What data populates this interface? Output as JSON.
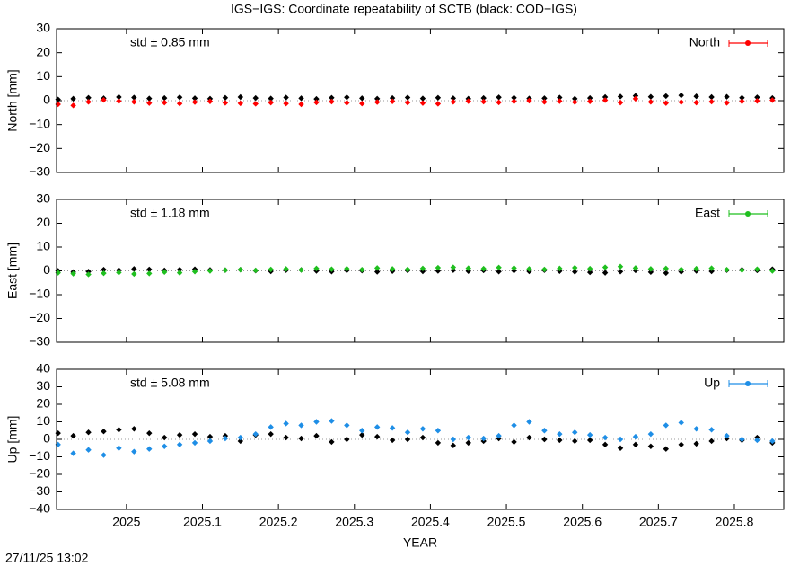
{
  "title": "IGS−IGS: Coordinate repeatability of SCTB (black: COD−IGS)",
  "xlabel": "YEAR",
  "timestamp": "27/11/25 13:02",
  "chart_data": [
    {
      "type": "scatter",
      "ylabel": "North [mm]",
      "annotation": "std ± 0.85 mm",
      "annotation_color": "#ff0000",
      "xlim": [
        2024.908,
        2025.865
      ],
      "ylim": [
        -30,
        30
      ],
      "yticks": [
        {
          "value": -30,
          "label": "−30"
        },
        {
          "value": -20,
          "label": "−20"
        },
        {
          "value": -10,
          "label": "−10"
        },
        0,
        10,
        20,
        30
      ],
      "legend": "top-right",
      "x": [
        2024.91,
        2024.93,
        2024.95,
        2024.97,
        2024.99,
        2025.01,
        2025.03,
        2025.05,
        2025.07,
        2025.09,
        2025.11,
        2025.13,
        2025.15,
        2025.17,
        2025.19,
        2025.21,
        2025.23,
        2025.25,
        2025.27,
        2025.29,
        2025.31,
        2025.33,
        2025.35,
        2025.37,
        2025.39,
        2025.41,
        2025.43,
        2025.45,
        2025.47,
        2025.49,
        2025.51,
        2025.53,
        2025.55,
        2025.57,
        2025.59,
        2025.61,
        2025.63,
        2025.65,
        2025.67,
        2025.69,
        2025.71,
        2025.73,
        2025.75,
        2025.77,
        2025.79,
        2025.81,
        2025.83,
        2025.85
      ],
      "series": [
        {
          "color": "#000000",
          "values": [
            0.5,
            0.8,
            1.2,
            1.0,
            1.5,
            1.3,
            0.9,
            1.1,
            1.4,
            1.0,
            0.8,
            1.2,
            1.5,
            1.1,
            0.9,
            1.3,
            1.0,
            0.7,
            1.2,
            1.4,
            1.0,
            0.8,
            1.1,
            1.3,
            0.9,
            1.2,
            1.0,
            0.8,
            1.1,
            1.4,
            1.2,
            0.9,
            1.0,
            1.3,
            0.8,
            1.1,
            1.5,
            1.7,
            2.0,
            1.6,
            1.9,
            2.2,
            1.8,
            1.5,
            1.6,
            1.2,
            1.4,
            1.1
          ]
        },
        {
          "name": "North",
          "color": "#ff0000",
          "values": [
            -1.5,
            -2.0,
            -0.5,
            0.3,
            -0.2,
            -0.5,
            -1.0,
            -0.8,
            -1.2,
            -0.6,
            -0.3,
            -0.9,
            -1.1,
            -1.3,
            -0.8,
            -1.2,
            -1.5,
            -0.7,
            -0.4,
            -0.9,
            -1.2,
            -0.6,
            -0.3,
            -0.8,
            -1.0,
            -1.3,
            -0.5,
            -0.2,
            -0.4,
            -0.7,
            -0.3,
            0.0,
            -0.5,
            -0.2,
            -0.6,
            -0.3,
            0.2,
            -0.8,
            0.8,
            -0.5,
            -1.0,
            -0.6,
            -0.8,
            -0.4,
            -0.9,
            -0.3,
            -0.1,
            0.2
          ]
        }
      ]
    },
    {
      "type": "scatter",
      "ylabel": "East [mm]",
      "annotation": "std ± 1.18 mm",
      "annotation_color": "#1fbf1f",
      "xlim": [
        2024.908,
        2025.865
      ],
      "ylim": [
        -30,
        30
      ],
      "yticks": [
        {
          "value": -30,
          "label": "−30"
        },
        {
          "value": -20,
          "label": "−20"
        },
        {
          "value": -10,
          "label": "−10"
        },
        0,
        10,
        20,
        30
      ],
      "legend": "top-right",
      "x": [
        2024.91,
        2024.93,
        2024.95,
        2024.97,
        2024.99,
        2025.01,
        2025.03,
        2025.05,
        2025.07,
        2025.09,
        2025.11,
        2025.13,
        2025.15,
        2025.17,
        2025.19,
        2025.21,
        2025.23,
        2025.25,
        2025.27,
        2025.29,
        2025.31,
        2025.33,
        2025.35,
        2025.37,
        2025.39,
        2025.41,
        2025.43,
        2025.45,
        2025.47,
        2025.49,
        2025.51,
        2025.53,
        2025.55,
        2025.57,
        2025.59,
        2025.61,
        2025.63,
        2025.65,
        2025.67,
        2025.69,
        2025.71,
        2025.73,
        2025.75,
        2025.77,
        2025.79,
        2025.81,
        2025.83,
        2025.85
      ],
      "series": [
        {
          "color": "#000000",
          "values": [
            0.0,
            -0.5,
            -0.3,
            0.5,
            0.3,
            0.8,
            0.6,
            0.2,
            0.5,
            0.7,
            0.4,
            0.3,
            0.5,
            0.1,
            -0.2,
            0.3,
            0.4,
            0.0,
            -0.3,
            0.2,
            0.1,
            -0.4,
            -0.1,
            0.2,
            -0.2,
            0.0,
            0.3,
            -0.1,
            0.2,
            -0.3,
            0.1,
            -0.2,
            0.3,
            -0.1,
            -0.4,
            -0.6,
            -0.8,
            -0.3,
            0.2,
            -0.5,
            -0.9,
            -0.4,
            0.0,
            -0.2,
            0.3,
            0.5,
            0.2,
            0.7
          ]
        },
        {
          "name": "East",
          "color": "#1fbf1f",
          "values": [
            -0.8,
            -1.2,
            -1.5,
            -1.0,
            -0.7,
            -1.3,
            -1.1,
            -0.5,
            -0.8,
            -0.3,
            0.0,
            0.3,
            0.5,
            0.2,
            0.6,
            0.8,
            0.4,
            1.0,
            0.7,
            0.9,
            0.5,
            1.2,
            0.8,
            0.6,
            1.0,
            1.3,
            1.5,
            1.1,
            0.9,
            1.4,
            1.2,
            0.8,
            0.6,
            1.0,
            1.3,
            0.9,
            1.5,
            1.8,
            1.2,
            0.8,
            1.0,
            0.6,
            0.9,
            1.1,
            0.5,
            0.3,
            0.7,
            0.0
          ]
        }
      ]
    },
    {
      "type": "scatter",
      "ylabel": "Up [mm]",
      "annotation": "std ± 5.08 mm",
      "annotation_color": "#1e8ee6",
      "xlim": [
        2024.908,
        2025.865
      ],
      "ylim": [
        -40,
        40
      ],
      "xticks": [
        2025,
        2025.1,
        2025.2,
        2025.3,
        2025.4,
        2025.5,
        2025.6,
        2025.7,
        2025.8
      ],
      "yticks": [
        {
          "value": -40,
          "label": "−40"
        },
        {
          "value": -30,
          "label": "−30"
        },
        {
          "value": -20,
          "label": "−20"
        },
        {
          "value": -10,
          "label": "−10"
        },
        0,
        10,
        20,
        30,
        40
      ],
      "legend": "top-right",
      "x": [
        2024.91,
        2024.93,
        2024.95,
        2024.97,
        2024.99,
        2025.01,
        2025.03,
        2025.05,
        2025.07,
        2025.09,
        2025.11,
        2025.13,
        2025.15,
        2025.17,
        2025.19,
        2025.21,
        2025.23,
        2025.25,
        2025.27,
        2025.29,
        2025.31,
        2025.33,
        2025.35,
        2025.37,
        2025.39,
        2025.41,
        2025.43,
        2025.45,
        2025.47,
        2025.49,
        2025.51,
        2025.53,
        2025.55,
        2025.57,
        2025.59,
        2025.61,
        2025.63,
        2025.65,
        2025.67,
        2025.69,
        2025.71,
        2025.73,
        2025.75,
        2025.77,
        2025.79,
        2025.81,
        2025.83,
        2025.85
      ],
      "series": [
        {
          "color": "#000000",
          "values": [
            3.5,
            2.0,
            4.0,
            4.5,
            5.5,
            6.0,
            3.5,
            1.0,
            2.5,
            3.0,
            1.5,
            2.0,
            -1.0,
            2.5,
            3.0,
            1.0,
            0.5,
            2.0,
            -1.5,
            0.0,
            2.5,
            1.5,
            -0.5,
            0.0,
            1.0,
            -2.0,
            -3.5,
            -2.0,
            -1.0,
            0.5,
            -1.5,
            1.0,
            0.0,
            -0.5,
            -1.0,
            -0.5,
            -3.0,
            -5.0,
            -3.0,
            -4.0,
            -5.5,
            -3.0,
            -2.5,
            -1.0,
            0.5,
            -0.5,
            1.0,
            -2.0
          ]
        },
        {
          "name": "Up",
          "color": "#1e8ee6",
          "values": [
            -3.0,
            -8.0,
            -6.0,
            -9.0,
            -5.0,
            -7.0,
            -5.5,
            -4.0,
            -3.0,
            -2.0,
            -1.0,
            0.5,
            1.0,
            3.0,
            7.0,
            9.0,
            8.0,
            10.0,
            10.5,
            8.0,
            5.0,
            7.0,
            6.5,
            4.0,
            6.0,
            5.0,
            0.0,
            1.0,
            0.5,
            2.0,
            8.0,
            10.0,
            5.0,
            3.0,
            4.0,
            2.5,
            1.0,
            0.0,
            1.5,
            3.0,
            8.0,
            9.5,
            6.0,
            5.5,
            2.0,
            0.0,
            -0.5,
            -1.0
          ]
        }
      ]
    }
  ]
}
